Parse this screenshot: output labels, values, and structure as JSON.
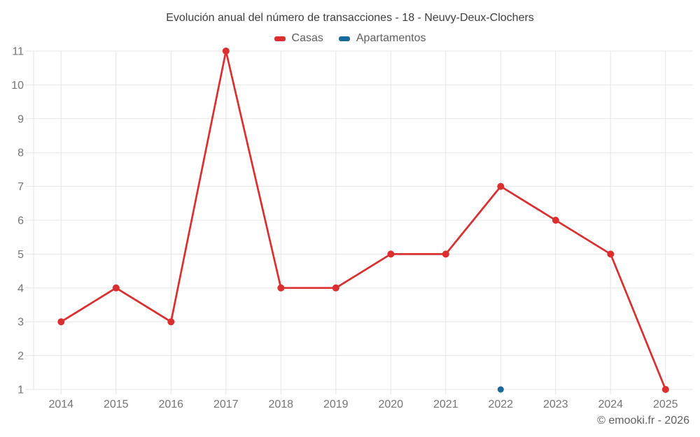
{
  "title": "Evolución anual del número de transacciones - 18 - Neuvy-Deux-Clochers",
  "copyright": "© emooki.fr - 2026",
  "colors": {
    "casas": "#dc2e2e",
    "apartamentos": "#17699c",
    "grid": "#e5e5e5",
    "axis_label": "#757575",
    "title_text": "#3d3d3d",
    "legend_text": "#5e5e5e",
    "copyright_text": "#5f5f5f",
    "background": "#ffffff"
  },
  "chart_data": {
    "type": "line",
    "title": "Evolución anual del número de transacciones - 18 - Neuvy-Deux-Clochers",
    "categories": [
      "2014",
      "2015",
      "2016",
      "2017",
      "2018",
      "2019",
      "2020",
      "2021",
      "2022",
      "2023",
      "2024",
      "2025"
    ],
    "series": [
      {
        "name": "Casas",
        "color": "#dc2e2e",
        "values": [
          3,
          4,
          3,
          11,
          4,
          4,
          5,
          5,
          7,
          6,
          5,
          1
        ]
      },
      {
        "name": "Apartamentos",
        "color": "#17699c",
        "values": [
          null,
          null,
          null,
          null,
          null,
          null,
          null,
          null,
          1,
          null,
          null,
          null
        ]
      }
    ],
    "ylim": [
      1,
      11
    ],
    "yticks": [
      1,
      2,
      3,
      4,
      5,
      6,
      7,
      8,
      9,
      10,
      11
    ],
    "grid": true,
    "legend_position": "top",
    "xlabel": "",
    "ylabel": ""
  }
}
